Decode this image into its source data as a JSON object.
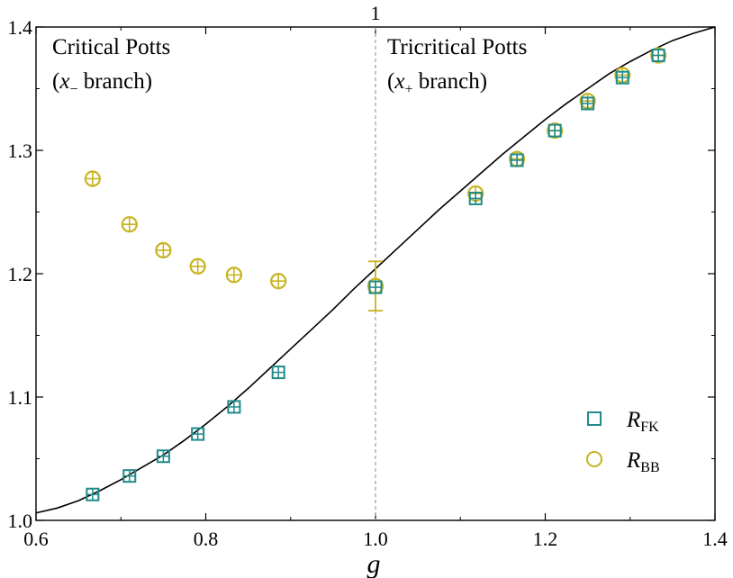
{
  "chart_data": {
    "type": "scatter",
    "xlabel": "g",
    "ylabel": "",
    "xlim": [
      0.6,
      1.4
    ],
    "ylim": [
      1.0,
      1.4
    ],
    "x_ticks": [
      0.6,
      0.8,
      1.0,
      1.2,
      1.4
    ],
    "x_tick_labels": [
      "0.6",
      "0.8",
      "1.0",
      "1.2",
      "1.4"
    ],
    "y_ticks": [
      1.0,
      1.1,
      1.2,
      1.3,
      1.4
    ],
    "y_tick_labels": [
      "1.0",
      "1.1",
      "1.2",
      "1.3",
      "1.4"
    ],
    "top_marker": {
      "x": 1.0,
      "label": "1"
    },
    "grid": false,
    "annotations": {
      "left_title": "Critical Potts",
      "left_branch_var": "x",
      "left_branch_sub": "−",
      "left_branch_word": " branch)",
      "right_title": "Tricritical Potts",
      "right_branch_var": "x",
      "right_branch_sub": "+",
      "right_branch_word": " branch)",
      "open_paren": "("
    },
    "legend": {
      "position": "bottom-right",
      "entries": [
        {
          "main": "R",
          "sub": "FK"
        },
        {
          "main": "R",
          "sub": "BB"
        }
      ]
    },
    "colors": {
      "fk": "#1f8a8a",
      "bb": "#c8b420",
      "curve": "#000000",
      "dashed": "#8a8a8a"
    },
    "series": [
      {
        "name": "R_FK",
        "marker": "square",
        "x": [
          0.6667,
          0.7101,
          0.75,
          0.7906,
          0.8333,
          0.8856,
          1.0,
          1.118,
          1.1667,
          1.2113,
          1.25,
          1.291,
          1.3333
        ],
        "y": [
          1.021,
          1.036,
          1.052,
          1.07,
          1.092,
          1.12,
          1.189,
          1.261,
          1.292,
          1.316,
          1.338,
          1.359,
          1.377
        ]
      },
      {
        "name": "R_BB",
        "marker": "circle",
        "x": [
          0.6667,
          0.7101,
          0.75,
          0.7906,
          0.8333,
          0.8856,
          1.0,
          1.118,
          1.1667,
          1.2113,
          1.25,
          1.291,
          1.3333
        ],
        "y": [
          1.277,
          1.24,
          1.219,
          1.206,
          1.199,
          1.194,
          1.19,
          1.265,
          1.293,
          1.316,
          1.34,
          1.361,
          1.377
        ],
        "errors": [
          0,
          0,
          0,
          0,
          0,
          0,
          0.02,
          0,
          0,
          0,
          0,
          0,
          0
        ]
      },
      {
        "name": "theory",
        "type": "line",
        "x": [
          0.6,
          0.625,
          0.65,
          0.675,
          0.7,
          0.725,
          0.75,
          0.775,
          0.8,
          0.825,
          0.85,
          0.875,
          0.9,
          0.925,
          0.95,
          0.975,
          1.0,
          1.025,
          1.05,
          1.075,
          1.1,
          1.125,
          1.15,
          1.175,
          1.2,
          1.225,
          1.25,
          1.275,
          1.3,
          1.325,
          1.35,
          1.375,
          1.4
        ],
        "y": [
          1.006,
          1.01,
          1.016,
          1.024,
          1.033,
          1.043,
          1.053,
          1.065,
          1.078,
          1.092,
          1.107,
          1.123,
          1.139,
          1.155,
          1.171,
          1.188,
          1.204,
          1.22,
          1.236,
          1.252,
          1.267,
          1.282,
          1.297,
          1.311,
          1.325,
          1.338,
          1.35,
          1.362,
          1.372,
          1.381,
          1.389,
          1.395,
          1.4
        ]
      }
    ]
  }
}
